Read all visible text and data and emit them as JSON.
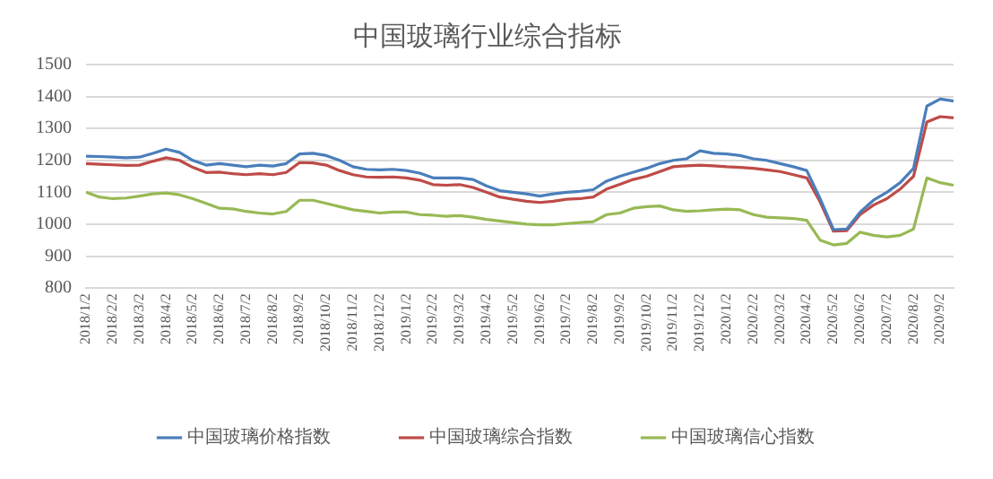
{
  "chart_data": {
    "type": "line",
    "title": "中国玻璃行业综合指标",
    "categories": [
      "2018/1/2",
      null,
      "2018/2/2",
      null,
      "2018/3/2",
      null,
      "2018/4/2",
      null,
      "2018/5/2",
      null,
      "2018/6/2",
      null,
      "2018/7/2",
      null,
      "2018/8/2",
      null,
      "2018/9/2",
      null,
      "2018/10/2",
      null,
      "2018/11/2",
      null,
      "2018/12/2",
      null,
      "2019/1/2",
      null,
      "2019/2/2",
      null,
      "2019/3/2",
      null,
      "2019/4/2",
      null,
      "2019/5/2",
      null,
      "2019/6/2",
      null,
      "2019/7/2",
      null,
      "2019/8/2",
      null,
      "2019/9/2",
      null,
      "2019/10/2",
      null,
      "2019/11/2",
      null,
      "2019/12/2",
      null,
      "2020/1/2",
      null,
      "2020/2/2",
      null,
      "2020/3/2",
      null,
      "2020/4/2",
      null,
      "2020/5/2",
      null,
      "2020/6/2",
      null,
      "2020/7/2",
      null,
      "2020/8/2",
      null,
      "2020/9/2",
      null
    ],
    "series": [
      {
        "name": "中国玻璃价格指数",
        "color": "#4a7ebb",
        "values": [
          1213,
          1212,
          1210,
          1208,
          1210,
          1222,
          1235,
          1225,
          1200,
          1185,
          1190,
          1185,
          1180,
          1185,
          1182,
          1190,
          1220,
          1222,
          1215,
          1200,
          1180,
          1172,
          1170,
          1172,
          1168,
          1160,
          1145,
          1145,
          1145,
          1140,
          1120,
          1105,
          1100,
          1095,
          1088,
          1095,
          1100,
          1103,
          1108,
          1135,
          1150,
          1163,
          1175,
          1190,
          1200,
          1205,
          1230,
          1222,
          1220,
          1215,
          1205,
          1200,
          1190,
          1180,
          1168,
          1080,
          983,
          985,
          1038,
          1075,
          1100,
          1130,
          1175,
          1370,
          1392,
          1386
        ]
      },
      {
        "name": "中国玻璃综合指数",
        "color": "#be4b48",
        "values": [
          1190,
          1188,
          1186,
          1184,
          1185,
          1197,
          1208,
          1200,
          1178,
          1162,
          1163,
          1158,
          1155,
          1158,
          1155,
          1162,
          1193,
          1192,
          1185,
          1168,
          1155,
          1148,
          1147,
          1148,
          1145,
          1138,
          1124,
          1122,
          1124,
          1115,
          1100,
          1085,
          1078,
          1072,
          1068,
          1072,
          1078,
          1080,
          1085,
          1110,
          1125,
          1140,
          1150,
          1165,
          1180,
          1183,
          1185,
          1183,
          1180,
          1178,
          1175,
          1170,
          1165,
          1155,
          1145,
          1070,
          978,
          980,
          1030,
          1060,
          1080,
          1110,
          1150,
          1320,
          1337,
          1333
        ]
      },
      {
        "name": "中国玻璃信心指数",
        "color": "#98b954",
        "values": [
          1100,
          1085,
          1080,
          1082,
          1088,
          1095,
          1098,
          1092,
          1080,
          1065,
          1050,
          1048,
          1040,
          1035,
          1032,
          1040,
          1075,
          1075,
          1065,
          1055,
          1045,
          1040,
          1035,
          1038,
          1038,
          1030,
          1028,
          1025,
          1027,
          1022,
          1015,
          1010,
          1005,
          1000,
          998,
          998,
          1002,
          1005,
          1008,
          1030,
          1035,
          1050,
          1055,
          1057,
          1045,
          1040,
          1042,
          1045,
          1047,
          1045,
          1030,
          1022,
          1020,
          1018,
          1012,
          950,
          935,
          940,
          975,
          965,
          960,
          965,
          985,
          1145,
          1130,
          1122
        ]
      }
    ],
    "ylim": [
      800,
      1500
    ],
    "yticks": [
      800,
      900,
      1000,
      1100,
      1200,
      1300,
      1400,
      1500
    ],
    "grid": "y",
    "legend": "bottom"
  }
}
